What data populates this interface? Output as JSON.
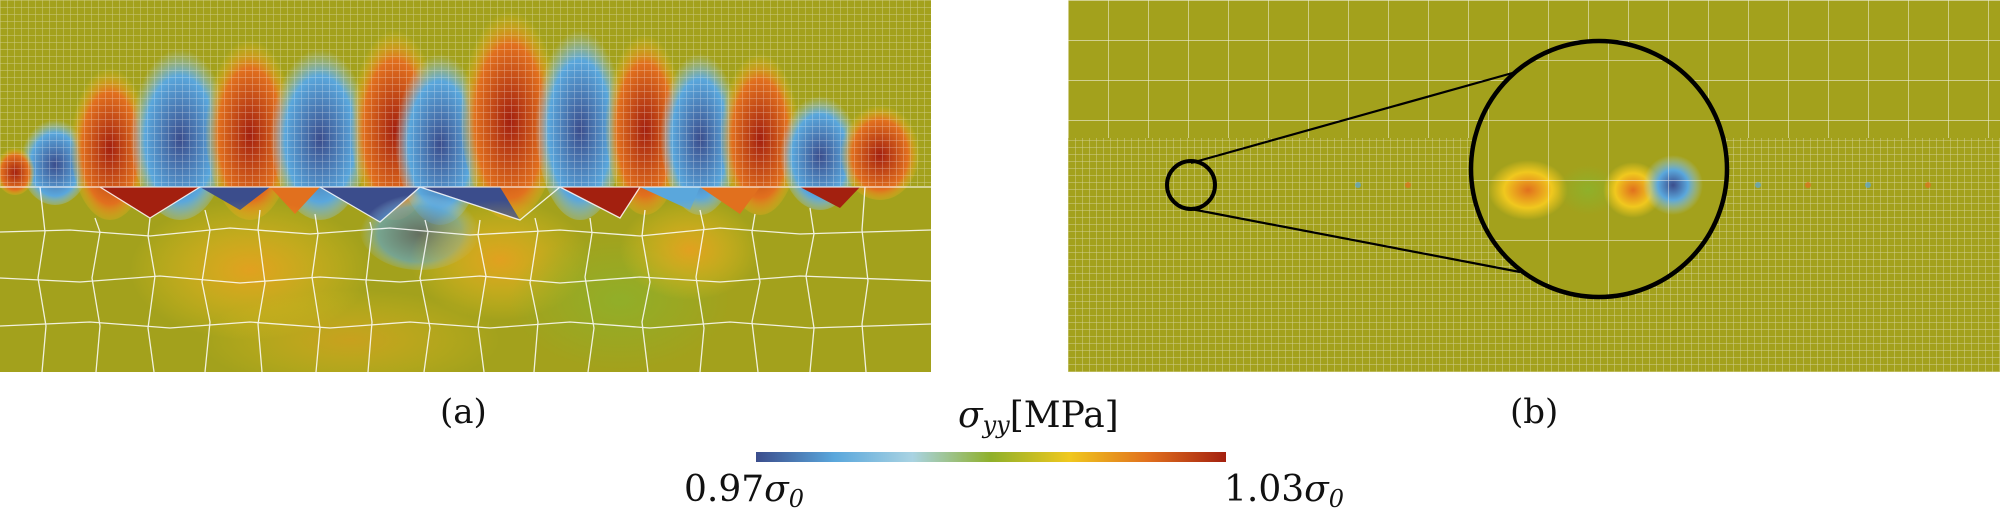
{
  "panels": [
    {
      "caption": "(a)"
    },
    {
      "caption": "(b)"
    }
  ],
  "colorbar": {
    "title_symbol": "σ",
    "title_subscript": "yy",
    "title_unit": "[MPa]",
    "min_coef": "0.97",
    "min_symbol": "σ",
    "min_subscript": "0",
    "max_coef": "1.03",
    "max_symbol": "σ",
    "max_subscript": "0",
    "colors": [
      "#3b4d8c",
      "#5aa7dc",
      "#a9d3e2",
      "#8fb02a",
      "#f0c81e",
      "#e1701e",
      "#a3200f"
    ]
  },
  "colors": {
    "background_field": "#a3a11c",
    "mesh_line": "#ffffff",
    "outline": "#000000"
  }
}
